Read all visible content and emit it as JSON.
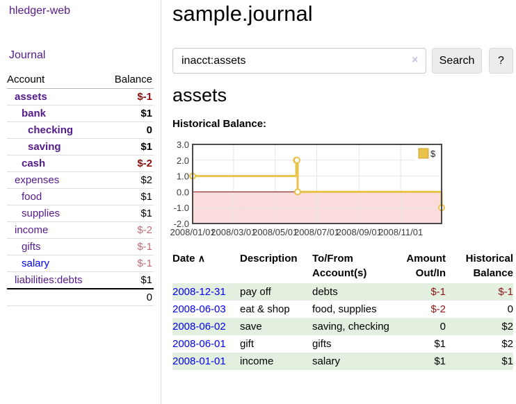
{
  "app": {
    "brand": "hledger-web"
  },
  "colors": {
    "link_purple": "#551a8b",
    "link_blue": "#0000ee",
    "negative_strong": "#8b0d0d",
    "negative_muted": "#bf6d79",
    "row_stripe_green": "#e3efdf",
    "chart_gold": "#e8c24a"
  },
  "sidebar": {
    "journal_label": "Journal",
    "accounts_table": {
      "headers": {
        "account": "Account",
        "balance": "Balance"
      },
      "rows": [
        {
          "name": "assets",
          "depth": 1,
          "bold": true,
          "balance": "$-1",
          "style": "neg-strong"
        },
        {
          "name": "bank",
          "depth": 2,
          "bold": true,
          "balance": "$1",
          "style": "pos"
        },
        {
          "name": "checking",
          "depth": 3,
          "bold": true,
          "balance": "0",
          "style": "pos"
        },
        {
          "name": "saving",
          "depth": 3,
          "bold": true,
          "balance": "$1",
          "style": "pos"
        },
        {
          "name": "cash",
          "depth": 2,
          "bold": true,
          "balance": "$-2",
          "style": "neg-strong"
        },
        {
          "name": "expenses",
          "depth": 1,
          "bold": false,
          "balance": "$2",
          "style": "pos"
        },
        {
          "name": "food",
          "depth": 2,
          "bold": false,
          "balance": "$1",
          "style": "pos"
        },
        {
          "name": "supplies",
          "depth": 2,
          "bold": false,
          "balance": "$1",
          "style": "pos"
        },
        {
          "name": "income",
          "depth": 1,
          "bold": false,
          "balance": "$-2",
          "style": "neg-muted"
        },
        {
          "name": "gifts",
          "depth": 2,
          "bold": false,
          "balance": "$-1",
          "style": "neg-muted"
        },
        {
          "name": "salary",
          "depth": 2,
          "bold": false,
          "balance": "$-1",
          "style": "neg-muted",
          "link": "blue"
        },
        {
          "name": "liabilities:debts",
          "depth": 1,
          "bold": false,
          "balance": "$1",
          "style": "pos"
        }
      ],
      "total": "0"
    }
  },
  "header": {
    "title": "sample.journal"
  },
  "search": {
    "value": "inacct:assets",
    "clear_icon": "×",
    "search_button": "Search",
    "help_button": "?"
  },
  "account_page": {
    "heading": "assets",
    "chart_label": "Historical Balance:"
  },
  "chart_data": {
    "type": "line",
    "step": true,
    "title": "Historical Balance",
    "series": [
      {
        "name": "$",
        "color": "#e8c24a",
        "points": [
          {
            "date": "2008-01-01",
            "value": 1
          },
          {
            "date": "2008-06-01",
            "value": 2
          },
          {
            "date": "2008-06-02",
            "value": 2
          },
          {
            "date": "2008-06-03",
            "value": 0
          },
          {
            "date": "2008-12-31",
            "value": -1
          }
        ]
      }
    ],
    "ylim": [
      -2,
      3
    ],
    "yticks": [
      "3.0",
      "2.0",
      "1.0",
      "0.0",
      "-1.0",
      "-2.0"
    ],
    "xticks": [
      {
        "label": "2008/01/01",
        "date": "2008-01-01"
      },
      {
        "label": "2008/03/01",
        "date": "2008-03-01"
      },
      {
        "label": "2008/05/01",
        "date": "2008-05-01"
      },
      {
        "label": "2008/07/01",
        "date": "2008-07-01"
      },
      {
        "label": "2008/09/01",
        "date": "2008-09-01"
      },
      {
        "label": "2008/11/01",
        "date": "2008-11-01"
      }
    ],
    "x_range": {
      "start": "2008-01-01",
      "end": "2008-12-31"
    },
    "grid": true,
    "negative_fill": "#fbdcdc",
    "zero_line_color": "#800000",
    "grid_color": "#e6e6e6",
    "border_color": "#4a4a4a",
    "legend": {
      "position": "top-right",
      "label": "$",
      "swatch_color": "#e8c24a"
    }
  },
  "register_table": {
    "headers": {
      "date": "Date",
      "sort_icon": "∧",
      "description": "Description",
      "accounts_line1": "To/From",
      "accounts_line2": "Account(s)",
      "amount_line1": "Amount",
      "amount_line2": "Out/In",
      "balance_line1": "Historical",
      "balance_line2": "Balance"
    },
    "rows": [
      {
        "date": "2008-12-31",
        "description": "pay off",
        "accounts": "debts",
        "amount": "$-1",
        "amount_neg": true,
        "balance": "$-1",
        "balance_neg": true,
        "green": true
      },
      {
        "date": "2008-06-03",
        "description": "eat & shop",
        "accounts": "food, supplies",
        "amount": "$-2",
        "amount_neg": true,
        "balance": "0",
        "balance_neg": false,
        "green": false
      },
      {
        "date": "2008-06-02",
        "description": "save",
        "accounts": "saving, checking",
        "amount": "0",
        "amount_neg": false,
        "balance": "$2",
        "balance_neg": false,
        "green": true
      },
      {
        "date": "2008-06-01",
        "description": "gift",
        "accounts": "gifts",
        "amount": "$1",
        "amount_neg": false,
        "balance": "$2",
        "balance_neg": false,
        "green": false
      },
      {
        "date": "2008-01-01",
        "description": "income",
        "accounts": "salary",
        "amount": "$1",
        "amount_neg": false,
        "balance": "$1",
        "balance_neg": false,
        "green": true
      }
    ]
  }
}
